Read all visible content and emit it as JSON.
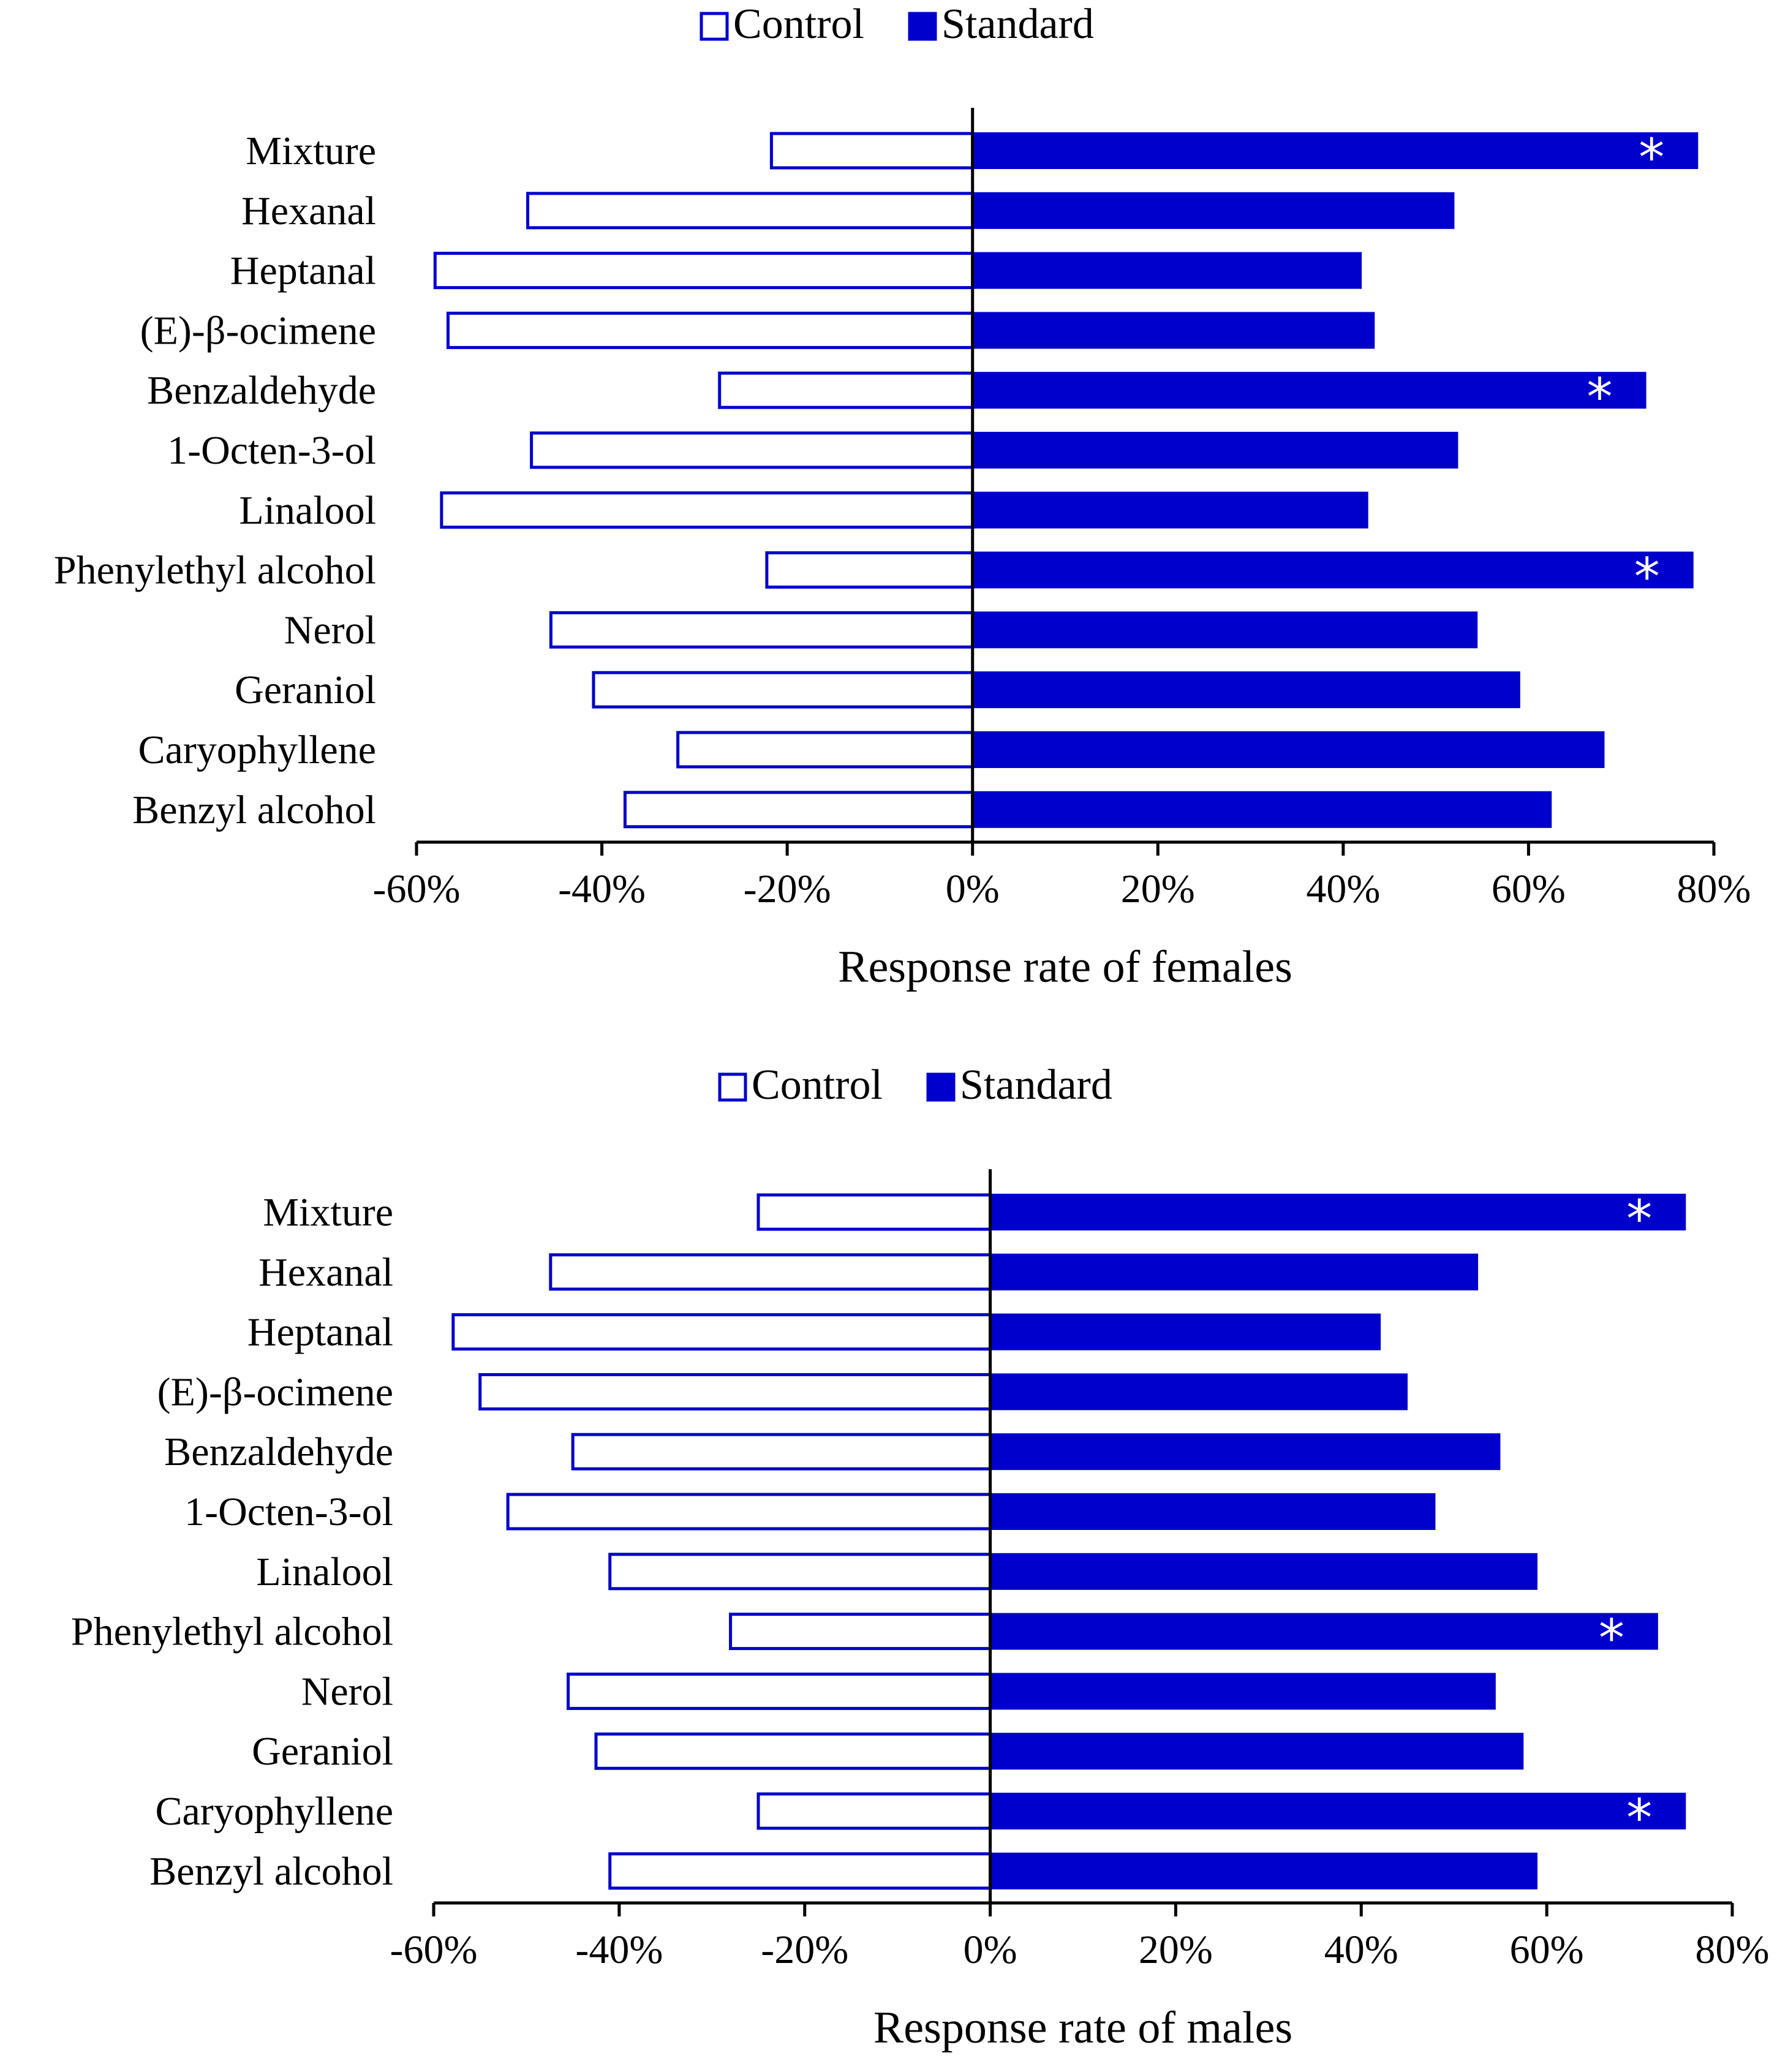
{
  "colors": {
    "control_stroke": "#0000CC",
    "standard_fill": "#0000CC",
    "axis": "#000000"
  },
  "legend": {
    "control": "Control",
    "standard": "Standard",
    "control_icon": "hollow-square-icon",
    "standard_icon": "filled-square-icon"
  },
  "significance_marker": "*",
  "chart_data": [
    {
      "type": "bar",
      "orientation": "horizontal-diverging",
      "xlabel": "Response rate of females",
      "xlim": [
        -60,
        80
      ],
      "xticks": [
        -60,
        -40,
        -20,
        0,
        20,
        40,
        60,
        80
      ],
      "xtick_labels": [
        "-60%",
        "-40%",
        "-20%",
        "0%",
        "20%",
        "40%",
        "60%",
        "80%"
      ],
      "legend_position": "top-center",
      "categories": [
        "Mixture",
        "Hexanal",
        "Heptanal",
        "(E)-β-ocimene",
        "Benzaldehyde",
        "1-Octen-3-ol",
        "Linalool",
        "Phenylethyl alcohol",
        "Nerol",
        "Geraniol",
        "Caryophyllene",
        "Benzyl alcohol"
      ],
      "series": [
        {
          "name": "Control",
          "values": [
            -21.7,
            -48,
            -58,
            -56.6,
            -27.3,
            -47.6,
            -57.3,
            -22.2,
            -45.5,
            -40.9,
            -31.8,
            -37.5
          ]
        },
        {
          "name": "Standard",
          "values": [
            78.3,
            52,
            42,
            43.4,
            72.7,
            52.4,
            42.7,
            77.8,
            54.5,
            59.1,
            68.2,
            62.5
          ]
        }
      ],
      "significant": [
        true,
        false,
        false,
        false,
        true,
        false,
        false,
        true,
        false,
        false,
        false,
        false
      ]
    },
    {
      "type": "bar",
      "orientation": "horizontal-diverging",
      "xlabel": "Response rate of males",
      "xlim": [
        -60,
        80
      ],
      "xticks": [
        -60,
        -40,
        -20,
        0,
        20,
        40,
        60,
        80
      ],
      "xtick_labels": [
        "-60%",
        "-40%",
        "-20%",
        "0%",
        "20%",
        "40%",
        "60%",
        "80%"
      ],
      "legend_position": "top-center",
      "categories": [
        "Mixture",
        "Hexanal",
        "Heptanal",
        "(E)-β-ocimene",
        "Benzaldehyde",
        "1-Octen-3-ol",
        "Linalool",
        "Phenylethyl alcohol",
        "Nerol",
        "Geraniol",
        "Caryophyllene",
        "Benzyl alcohol"
      ],
      "series": [
        {
          "name": "Control",
          "values": [
            -25,
            -47.4,
            -57.9,
            -55,
            -45,
            -52,
            -41,
            -28,
            -45.5,
            -42.5,
            -25,
            -41
          ]
        },
        {
          "name": "Standard",
          "values": [
            75,
            52.6,
            42.1,
            45,
            55,
            48,
            59,
            72,
            54.5,
            57.5,
            75,
            59
          ]
        }
      ],
      "significant": [
        true,
        false,
        false,
        false,
        false,
        false,
        false,
        true,
        false,
        false,
        true,
        false
      ]
    }
  ]
}
